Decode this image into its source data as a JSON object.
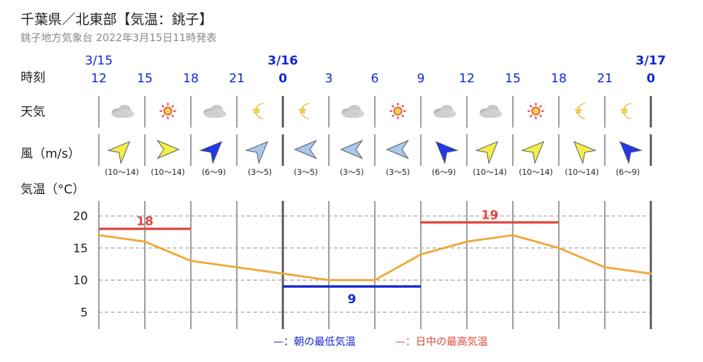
{
  "header": {
    "title": "千葉県／北東部【気温：銚子】",
    "subtitle": "銚子地方気象台 2022年3月15日11時発表"
  },
  "row_labels": {
    "time": "時刻",
    "weather": "天気",
    "wind": "風（m/s）",
    "temp": "気温（°C）"
  },
  "colors": {
    "accent_blue": "#1428d0",
    "max_red": "#e04a3f",
    "temp_line": "#f0a838",
    "grid": "#999999",
    "wind_yellow": "#f2ee4a",
    "wind_lightblue": "#a8c8ec",
    "wind_blue": "#2238e8"
  },
  "dates": [
    {
      "label": "3/15",
      "slot": 0,
      "bold": false
    },
    {
      "label": "3/16",
      "slot": 4,
      "bold": true
    },
    {
      "label": "3/17",
      "slot": 12,
      "bold": true
    }
  ],
  "times": [
    "12",
    "15",
    "18",
    "21",
    "0",
    "3",
    "6",
    "9",
    "12",
    "15",
    "18",
    "21",
    "0"
  ],
  "weather": [
    "cloud-icon",
    "sun-icon",
    "cloud-icon",
    "moon-icon",
    "moon-icon",
    "cloud-icon",
    "sun-icon",
    "cloud-icon",
    "cloud-icon",
    "sun-icon",
    "moon-icon",
    "moon-icon"
  ],
  "wind": [
    {
      "dir": "NE",
      "color": "yellow",
      "speed": "(10〜14)"
    },
    {
      "dir": "E",
      "color": "yellow",
      "speed": "(10〜14)"
    },
    {
      "dir": "NE",
      "color": "blue",
      "speed": "(6〜9)"
    },
    {
      "dir": "NE",
      "color": "lightblue",
      "speed": "(3〜5)"
    },
    {
      "dir": "W",
      "color": "lightblue",
      "speed": "(3〜5)"
    },
    {
      "dir": "W",
      "color": "lightblue",
      "speed": "(3〜5)"
    },
    {
      "dir": "W",
      "color": "lightblue",
      "speed": "(3〜5)"
    },
    {
      "dir": "NW",
      "color": "blue",
      "speed": "(6〜9)"
    },
    {
      "dir": "NE",
      "color": "yellow",
      "speed": "(10〜14)"
    },
    {
      "dir": "NE",
      "color": "yellow",
      "speed": "(10〜14)"
    },
    {
      "dir": "NW",
      "color": "yellow",
      "speed": "(10〜14)"
    },
    {
      "dir": "NW",
      "color": "blue",
      "speed": "(6〜9)"
    }
  ],
  "chart_data": {
    "type": "line",
    "x": [
      "3/15 12",
      "3/15 15",
      "3/15 18",
      "3/15 21",
      "3/16 0",
      "3/16 3",
      "3/16 6",
      "3/16 9",
      "3/16 12",
      "3/16 15",
      "3/16 18",
      "3/16 21",
      "3/17 0"
    ],
    "series": [
      {
        "values": [
          17,
          16,
          13,
          12,
          11,
          10,
          10,
          14,
          16,
          17,
          15,
          12,
          11
        ]
      }
    ],
    "min_temp": {
      "value": 9,
      "label": "9",
      "from": "3/16 0",
      "to": "3/16 9"
    },
    "max_temps": [
      {
        "value": 18,
        "label": "18",
        "from": "3/15 12",
        "to": "3/15 18"
      },
      {
        "value": 19,
        "label": "19",
        "from": "3/16 9",
        "to": "3/16 18"
      }
    ],
    "yticks": [
      "20",
      "15",
      "10",
      "5"
    ],
    "ylim": [
      3,
      22
    ],
    "legend": [
      {
        "text": "—：朝の最低気温",
        "color": "#1428d0"
      },
      {
        "text": "—：日中の最高気温",
        "color": "#e04a3f"
      }
    ],
    "legend_position": "bottom-center"
  }
}
